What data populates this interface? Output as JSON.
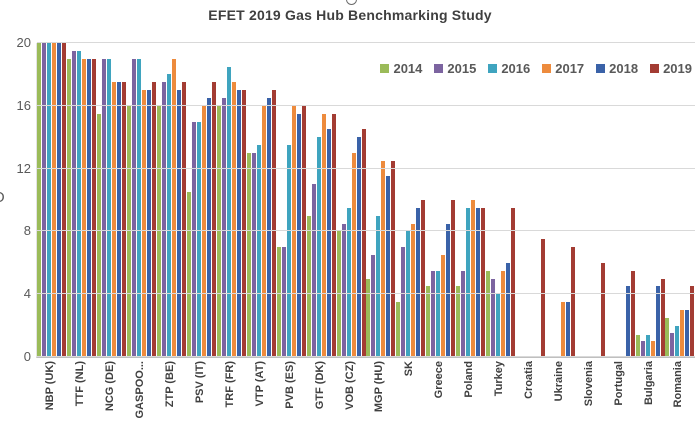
{
  "title": "EFET 2019 Gas Hub Benchmarking Study",
  "cropped_glyphs": {
    "left_edge": "O"
  },
  "chart_data": {
    "type": "bar",
    "title": "EFET 2019 Gas Hub Benchmarking Study",
    "xlabel": "",
    "ylabel": "",
    "ylim": [
      0,
      20
    ],
    "yticks": [
      0,
      4,
      8,
      12,
      16,
      20
    ],
    "grid": true,
    "legend_position": "top-right",
    "categories": [
      "NBP (UK)",
      "TTF (NL)",
      "NCG (DE)",
      "GASPOO...",
      "ZTP (BE)",
      "PSV (IT)",
      "TRF (FR)",
      "VTP (AT)",
      "PVB (ES)",
      "GTF (DK)",
      "VOB (CZ)",
      "MGP (HU)",
      "SK",
      "Greece",
      "Poland",
      "Turkey",
      "Croatia",
      "Ukraine",
      "Slovenia",
      "Portugal",
      "Bulgaria",
      "Romania"
    ],
    "series": [
      {
        "name": "2014",
        "color": "#9BBB59",
        "values": [
          20,
          19,
          15.5,
          16,
          16,
          10.5,
          16,
          13,
          7,
          9,
          8,
          5,
          3.5,
          4.5,
          4.5,
          5.5,
          0,
          0,
          0,
          0,
          1.4,
          2.5
        ]
      },
      {
        "name": "2015",
        "color": "#7C64A0",
        "values": [
          20,
          19.5,
          19,
          19,
          17.5,
          15,
          16.5,
          13,
          7,
          11,
          8.5,
          6.5,
          7,
          5.5,
          5.5,
          5,
          0,
          0,
          0,
          0,
          1,
          1.5
        ]
      },
      {
        "name": "2016",
        "color": "#3FA4BF",
        "values": [
          20,
          19.5,
          19,
          19,
          18,
          15,
          18.5,
          13.5,
          13.5,
          14,
          9.5,
          9,
          8,
          5.5,
          9.5,
          4,
          0,
          0,
          0,
          0,
          1.4,
          2
        ]
      },
      {
        "name": "2017",
        "color": "#ED8B3D",
        "values": [
          20,
          19,
          17.5,
          17,
          19,
          16,
          17.5,
          16,
          16,
          15.5,
          13,
          12.5,
          8.5,
          6.5,
          10,
          5.5,
          0,
          3.5,
          0,
          0,
          1,
          3
        ]
      },
      {
        "name": "2018",
        "color": "#3A62A8",
        "values": [
          20,
          19,
          17.5,
          17,
          17,
          16.5,
          17,
          16.5,
          15.5,
          14.5,
          14,
          11.5,
          9.5,
          8.5,
          9.5,
          6,
          0,
          3.5,
          0,
          4.5,
          4.5,
          3
        ]
      },
      {
        "name": "2019",
        "color": "#A33C33",
        "values": [
          20,
          19,
          17.5,
          17.5,
          17.5,
          17.5,
          17,
          17,
          16,
          15.5,
          14.5,
          12.5,
          10,
          10,
          9.5,
          9.5,
          7.5,
          7,
          6,
          5.5,
          5,
          4.5
        ]
      }
    ]
  }
}
